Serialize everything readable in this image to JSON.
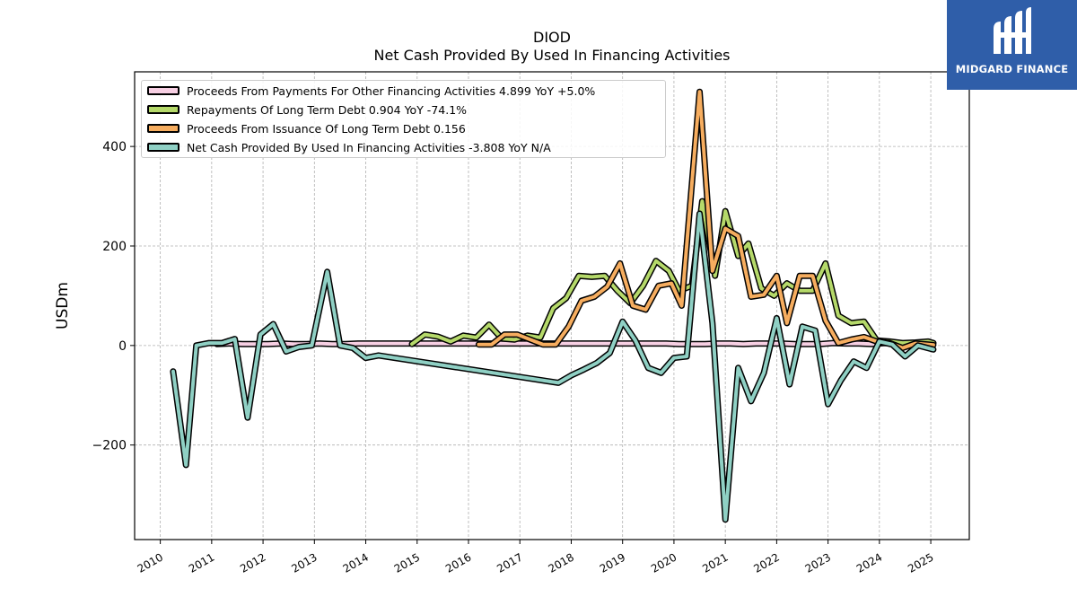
{
  "header": {
    "ticker": "DIOD",
    "subtitle": "Net Cash Provided By Used In Financing Activities"
  },
  "brand": {
    "name": "MIDGARD FINANCE",
    "color": "#2f5ea9"
  },
  "legend": {
    "items": [
      {
        "label": "Proceeds From Payments For Other Financing Activities  4.899 YoY +5.0%",
        "color": "#f7cfe3"
      },
      {
        "label": "Repayments Of Long Term Debt  0.904 YoY -74.1%",
        "color": "#b5d96a"
      },
      {
        "label": "Proceeds From Issuance Of Long Term Debt  0.156",
        "color": "#f6ad5f"
      },
      {
        "label": "Net Cash Provided By Used In Financing Activities  -3.808 YoY N/A",
        "color": "#8fd0c4"
      }
    ]
  },
  "chart_data": {
    "type": "line",
    "title": "DIOD\nNet Cash Provided By Used In Financing Activities",
    "xlabel": "",
    "ylabel": "USDm",
    "xlim": [
      2009.5,
      2025.75
    ],
    "ylim": [
      -390,
      550
    ],
    "x_ticks": [
      2010,
      2011,
      2012,
      2013,
      2014,
      2015,
      2016,
      2017,
      2018,
      2019,
      2020,
      2021,
      2022,
      2023,
      2024,
      2025
    ],
    "y_ticks": [
      -200,
      0,
      200,
      400
    ],
    "y_tick_labels": [
      "−200",
      "0",
      "200",
      "400"
    ],
    "grid": true,
    "legend_position": "top-left",
    "series": [
      {
        "name": "Proceeds From Payments For Other Financing Activities",
        "color": "#f7cfe3",
        "points": [
          [
            2011.1,
            3
          ],
          [
            2011.35,
            4
          ],
          [
            2011.6,
            3
          ],
          [
            2011.85,
            3
          ],
          [
            2012.1,
            3
          ],
          [
            2012.35,
            4
          ],
          [
            2012.6,
            3
          ],
          [
            2012.85,
            3
          ],
          [
            2013.1,
            4
          ],
          [
            2013.35,
            3
          ],
          [
            2013.6,
            3
          ],
          [
            2013.85,
            4
          ],
          [
            2014.1,
            4
          ],
          [
            2014.35,
            4
          ],
          [
            2014.6,
            4
          ],
          [
            2014.85,
            4
          ],
          [
            2015.1,
            4
          ],
          [
            2015.35,
            4
          ],
          [
            2015.6,
            4
          ],
          [
            2015.85,
            4
          ],
          [
            2016.1,
            4
          ],
          [
            2016.35,
            4
          ],
          [
            2016.6,
            4
          ],
          [
            2016.85,
            4
          ],
          [
            2017.1,
            4
          ],
          [
            2017.35,
            4
          ],
          [
            2017.6,
            4
          ],
          [
            2017.85,
            4
          ],
          [
            2018.1,
            4
          ],
          [
            2018.35,
            4
          ],
          [
            2018.6,
            4
          ],
          [
            2018.85,
            4
          ],
          [
            2019.1,
            4
          ],
          [
            2019.35,
            4
          ],
          [
            2019.6,
            4
          ],
          [
            2019.85,
            4
          ],
          [
            2020.1,
            3
          ],
          [
            2020.35,
            3
          ],
          [
            2020.6,
            3
          ],
          [
            2020.85,
            4
          ],
          [
            2021.1,
            4
          ],
          [
            2021.35,
            3
          ],
          [
            2021.6,
            4
          ],
          [
            2021.85,
            4
          ],
          [
            2022.1,
            4
          ],
          [
            2022.35,
            3
          ],
          [
            2022.6,
            3
          ],
          [
            2022.85,
            3
          ],
          [
            2023.1,
            5
          ],
          [
            2023.35,
            4
          ],
          [
            2023.6,
            4
          ],
          [
            2023.85,
            3
          ],
          [
            2024.1,
            5
          ],
          [
            2024.35,
            4
          ],
          [
            2024.6,
            4
          ],
          [
            2024.85,
            4
          ],
          [
            2025.05,
            5
          ]
        ]
      },
      {
        "name": "Repayments Of Long Term Debt",
        "color": "#b5d96a",
        "points": [
          [
            2014.9,
            3
          ],
          [
            2015.15,
            22
          ],
          [
            2015.4,
            18
          ],
          [
            2015.65,
            8
          ],
          [
            2015.9,
            20
          ],
          [
            2016.15,
            16
          ],
          [
            2016.4,
            42
          ],
          [
            2016.65,
            14
          ],
          [
            2016.9,
            12
          ],
          [
            2017.15,
            20
          ],
          [
            2017.4,
            16
          ],
          [
            2017.65,
            75
          ],
          [
            2017.9,
            95
          ],
          [
            2018.15,
            140
          ],
          [
            2018.4,
            138
          ],
          [
            2018.65,
            140
          ],
          [
            2018.9,
            110
          ],
          [
            2019.15,
            85
          ],
          [
            2019.4,
            120
          ],
          [
            2019.65,
            170
          ],
          [
            2019.9,
            150
          ],
          [
            2020.1,
            110
          ],
          [
            2020.35,
            120
          ],
          [
            2020.55,
            290
          ],
          [
            2020.8,
            140
          ],
          [
            2021.0,
            270
          ],
          [
            2021.25,
            180
          ],
          [
            2021.45,
            205
          ],
          [
            2021.7,
            115
          ],
          [
            2021.95,
            100
          ],
          [
            2022.2,
            125
          ],
          [
            2022.45,
            110
          ],
          [
            2022.7,
            110
          ],
          [
            2022.95,
            165
          ],
          [
            2023.2,
            60
          ],
          [
            2023.45,
            45
          ],
          [
            2023.7,
            48
          ],
          [
            2023.95,
            10
          ],
          [
            2024.2,
            8
          ],
          [
            2024.45,
            5
          ],
          [
            2024.7,
            6
          ],
          [
            2024.95,
            8
          ],
          [
            2025.05,
            5
          ]
        ]
      },
      {
        "name": "Proceeds From Issuance Of Long Term Debt",
        "color": "#f6ad5f",
        "points": [
          [
            2016.2,
            2
          ],
          [
            2016.45,
            2
          ],
          [
            2016.7,
            22
          ],
          [
            2016.95,
            22
          ],
          [
            2017.2,
            12
          ],
          [
            2017.45,
            2
          ],
          [
            2017.7,
            2
          ],
          [
            2017.95,
            38
          ],
          [
            2018.2,
            90
          ],
          [
            2018.45,
            98
          ],
          [
            2018.7,
            118
          ],
          [
            2018.95,
            165
          ],
          [
            2019.2,
            80
          ],
          [
            2019.45,
            72
          ],
          [
            2019.7,
            120
          ],
          [
            2019.95,
            125
          ],
          [
            2020.15,
            80
          ],
          [
            2020.5,
            510
          ],
          [
            2020.75,
            150
          ],
          [
            2021.0,
            235
          ],
          [
            2021.25,
            220
          ],
          [
            2021.5,
            98
          ],
          [
            2021.75,
            102
          ],
          [
            2022.0,
            140
          ],
          [
            2022.2,
            45
          ],
          [
            2022.45,
            140
          ],
          [
            2022.7,
            140
          ],
          [
            2022.95,
            50
          ],
          [
            2023.2,
            5
          ],
          [
            2023.45,
            12
          ],
          [
            2023.7,
            17
          ],
          [
            2023.95,
            8
          ],
          [
            2024.2,
            5
          ],
          [
            2024.45,
            -5
          ],
          [
            2024.7,
            4
          ],
          [
            2024.95,
            2
          ],
          [
            2025.05,
            1
          ]
        ]
      },
      {
        "name": "Net Cash Provided By Used In Financing Activities",
        "color": "#8fd0c4",
        "points": [
          [
            2010.25,
            -52
          ],
          [
            2010.5,
            -240
          ],
          [
            2010.7,
            0
          ],
          [
            2010.95,
            5
          ],
          [
            2011.2,
            5
          ],
          [
            2011.45,
            13
          ],
          [
            2011.7,
            -145
          ],
          [
            2011.95,
            22
          ],
          [
            2012.2,
            43
          ],
          [
            2012.45,
            -12
          ],
          [
            2012.7,
            -3
          ],
          [
            2012.95,
            0
          ],
          [
            2013.25,
            148
          ],
          [
            2013.5,
            0
          ],
          [
            2013.75,
            -5
          ],
          [
            2014.0,
            -25
          ],
          [
            2014.25,
            -20
          ],
          [
            2017.75,
            -75
          ],
          [
            2018.0,
            -60
          ],
          [
            2018.25,
            -48
          ],
          [
            2018.5,
            -35
          ],
          [
            2018.75,
            -15
          ],
          [
            2019.0,
            48
          ],
          [
            2019.25,
            10
          ],
          [
            2019.5,
            -45
          ],
          [
            2019.75,
            -55
          ],
          [
            2020.0,
            -25
          ],
          [
            2020.25,
            -22
          ],
          [
            2020.5,
            265
          ],
          [
            2020.75,
            45
          ],
          [
            2021.0,
            -350
          ],
          [
            2021.25,
            -45
          ],
          [
            2021.5,
            -112
          ],
          [
            2021.75,
            -55
          ],
          [
            2022.0,
            55
          ],
          [
            2022.25,
            -78
          ],
          [
            2022.5,
            38
          ],
          [
            2022.75,
            30
          ],
          [
            2023.0,
            -118
          ],
          [
            2023.25,
            -70
          ],
          [
            2023.5,
            -32
          ],
          [
            2023.75,
            -45
          ],
          [
            2024.0,
            8
          ],
          [
            2024.25,
            2
          ],
          [
            2024.5,
            -22
          ],
          [
            2024.75,
            0
          ],
          [
            2025.05,
            -8
          ]
        ]
      }
    ]
  }
}
